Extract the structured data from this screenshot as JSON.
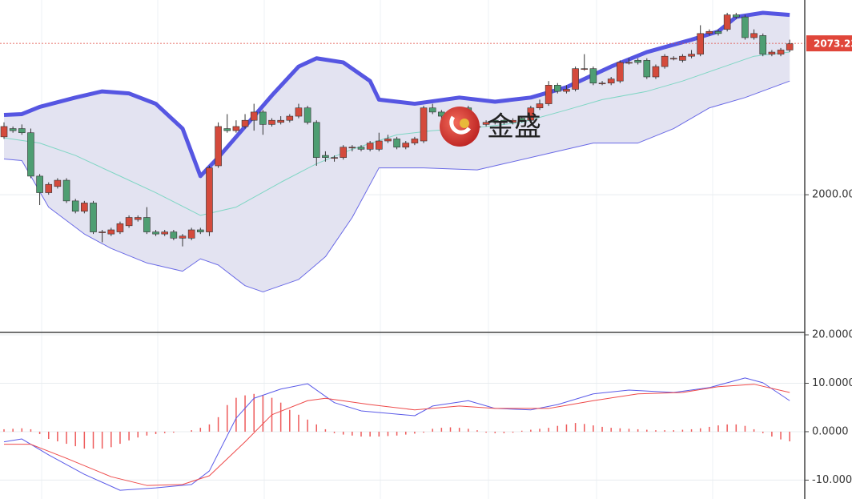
{
  "chart_data": [
    {
      "type": "candlestick",
      "up_color": "#d44a3c",
      "down_color": "#4e9e72",
      "open": [
        2028,
        2032,
        2032,
        2030,
        2009,
        2001,
        2004,
        2007,
        1997,
        1992,
        1996,
        1982,
        1981,
        1982,
        1985,
        1988,
        1989,
        1982,
        1981,
        1982,
        1979,
        1979,
        1983,
        1982,
        2014,
        2032,
        2031,
        2033,
        2036,
        2040,
        2034,
        2035,
        2036,
        2038,
        2042,
        2035,
        2019,
        2018,
        2018,
        2023,
        2023,
        2022,
        2022,
        2026,
        2027,
        2023,
        2025,
        2026,
        2042,
        2040,
        2038,
        2036,
        2042,
        2033,
        2034,
        2036,
        2036,
        2035,
        2037,
        2036,
        2042,
        2044,
        2053,
        2050,
        2051,
        2061,
        2061,
        2054,
        2054,
        2055,
        2064,
        2065,
        2065,
        2057,
        2062,
        2066,
        2065,
        2067,
        2068,
        2078,
        2079,
        2080,
        2087,
        2086,
        2076,
        2077,
        2068,
        2068,
        2070
      ],
      "high": [
        2035,
        2033,
        2034,
        2032,
        2010,
        2006,
        2008,
        2008,
        1998,
        1997,
        1997,
        1983,
        1984,
        1987,
        1990,
        1990,
        1994,
        1983,
        1983,
        1983,
        1981,
        1984,
        1984,
        2014,
        2035,
        2039,
        2036,
        2039,
        2044,
        2041,
        2037,
        2038,
        2039,
        2044,
        2043,
        2036,
        2021,
        2019,
        2024,
        2024,
        2024,
        2026,
        2030,
        2029,
        2028,
        2026,
        2028,
        2043,
        2044,
        2041,
        2039,
        2039,
        2043,
        2034,
        2036,
        2037,
        2037,
        2037,
        2038,
        2043,
        2046,
        2055,
        2054,
        2053,
        2062,
        2068,
        2062,
        2055,
        2057,
        2065,
        2066,
        2066,
        2066,
        2063,
        2068,
        2067,
        2068,
        2070,
        2082,
        2080,
        2080,
        2088,
        2088,
        2087,
        2080,
        2078,
        2070,
        2071,
        2075
      ],
      "low": [
        2027,
        2030,
        2029,
        2008,
        1995,
        2000,
        2003,
        1996,
        1991,
        1991,
        1981,
        1977,
        1980,
        1981,
        1984,
        1987,
        1981,
        1980,
        1980,
        1978,
        1975,
        1978,
        1981,
        1980,
        2013,
        2030,
        2030,
        2032,
        2031,
        2029,
        2033,
        2034,
        2035,
        2037,
        2034,
        2014,
        2016,
        2016,
        2017,
        2021,
        2021,
        2021,
        2021,
        2025,
        2022,
        2022,
        2024,
        2025,
        2039,
        2036,
        2035,
        2035,
        2031,
        2032,
        2033,
        2034,
        2034,
        2034,
        2035,
        2035,
        2041,
        2043,
        2049,
        2049,
        2050,
        2060,
        2053,
        2053,
        2053,
        2054,
        2063,
        2063,
        2056,
        2056,
        2061,
        2065,
        2064,
        2066,
        2067,
        2077,
        2077,
        2079,
        2085,
        2075,
        2075,
        2067,
        2067,
        2067,
        2069
      ],
      "close": [
        2033,
        2031,
        2030,
        2009,
        2001,
        2005,
        2007,
        1997,
        1992,
        1996,
        1982,
        1982,
        1983,
        1986,
        1989,
        1989,
        1982,
        1981,
        1982,
        1979,
        1980,
        1983,
        1982,
        2013,
        2033,
        2031,
        2033,
        2036,
        2040,
        2034,
        2036,
        2036,
        2038,
        2042,
        2035,
        2018,
        2018,
        2018,
        2023,
        2023,
        2022,
        2025,
        2026,
        2027,
        2023,
        2025,
        2027,
        2042,
        2040,
        2038,
        2036,
        2038,
        2032,
        2033,
        2035,
        2035,
        2035,
        2036,
        2036,
        2042,
        2044,
        2053,
        2050,
        2051,
        2061,
        2061,
        2054,
        2054,
        2056,
        2064,
        2064,
        2064,
        2057,
        2062,
        2067,
        2066,
        2067,
        2068,
        2078,
        2079,
        2078,
        2087,
        2086,
        2076,
        2078,
        2068,
        2069,
        2070,
        2073
      ],
      "bands": {
        "fill": "#e3e3f1",
        "upper": {
          "color": "#5656e2",
          "x": [
            0,
            2,
            4,
            8,
            11,
            14,
            17,
            20,
            22,
            24,
            27,
            30,
            33,
            35,
            38,
            41,
            42,
            46,
            51,
            55,
            59,
            63,
            68,
            72,
            77,
            80,
            82,
            85,
            88
          ],
          "values": [
            2038.6,
            2039,
            2042.5,
            2047,
            2050,
            2049,
            2044,
            2032,
            2009,
            2018,
            2033,
            2048,
            2062,
            2066,
            2064,
            2055,
            2046,
            2044,
            2047,
            2045,
            2047,
            2052,
            2062,
            2069,
            2075,
            2079,
            2086,
            2088,
            2087
          ]
        },
        "middle": {
          "color": "#7fd6c4",
          "x": [
            0,
            4,
            8,
            13,
            17,
            22,
            26,
            31,
            35,
            39,
            44,
            48,
            54,
            58,
            63,
            67,
            72,
            76,
            80,
            84,
            88
          ],
          "values": [
            2027.5,
            2025,
            2019,
            2009,
            2001,
            1990,
            1994,
            2006,
            2015,
            2022,
            2029,
            2031,
            2033,
            2035,
            2041,
            2046,
            2050,
            2055,
            2061,
            2067,
            2069
          ]
        },
        "lower": {
          "color": "#6a6ae6",
          "x": [
            0,
            2,
            5,
            9,
            12,
            16,
            20,
            22,
            24,
            27,
            29,
            33,
            36,
            39,
            42,
            47,
            53,
            56,
            61,
            66,
            71,
            75,
            79,
            83,
            88
          ],
          "values": [
            2017.3,
            2016.5,
            1994,
            1981,
            1974,
            1967,
            1963,
            1969,
            1966,
            1956,
            1953,
            1959,
            1970,
            1989,
            2013,
            2013,
            2012,
            2015,
            2020,
            2025,
            2025,
            2032,
            2042,
            2047,
            2055
          ]
        }
      },
      "ylim": [
        1933.4,
        2094.2
      ],
      "yticks": [
        {
          "value": 2000,
          "label": "2000.00"
        }
      ],
      "last_price": {
        "value": 2073.23,
        "label": "2073.23",
        "color": "#e0463a"
      }
    },
    {
      "type": "macd",
      "histogram_color": "#ee5a5a",
      "histogram": [
        0.5,
        0.6,
        0.7,
        0.5,
        -0.5,
        -1.5,
        -2,
        -2.5,
        -3,
        -3.5,
        -3.5,
        -3.5,
        -3.2,
        -2.5,
        -1.8,
        -1.2,
        -0.8,
        -0.5,
        -0.3,
        -0.2,
        0,
        0.3,
        0.8,
        1.5,
        3,
        5.5,
        7,
        7.5,
        7.8,
        7.6,
        7,
        6,
        4.5,
        3.5,
        2.5,
        1.5,
        0.5,
        -0.3,
        -0.6,
        -0.8,
        -1,
        -1,
        -1,
        -0.9,
        -0.8,
        -0.6,
        -0.4,
        -0.2,
        0.6,
        0.8,
        0.9,
        0.8,
        0.6,
        0.3,
        -0.2,
        -0.3,
        -0.3,
        -0.2,
        0.2,
        0.4,
        0.6,
        0.8,
        1.2,
        1.5,
        1.8,
        1.6,
        1.3,
        1,
        0.8,
        0.7,
        0.6,
        0.5,
        0.4,
        0.3,
        0.3,
        0.3,
        0.4,
        0.5,
        0.7,
        1,
        1.3,
        1.5,
        1.5,
        1.2,
        0.5,
        -0.3,
        -1,
        -1.6,
        -2
      ],
      "series": [
        {
          "color": "#5a5ae8",
          "x": [
            0,
            2,
            5,
            9,
            13,
            17,
            21,
            23,
            26,
            28,
            31,
            34,
            37,
            40,
            46,
            48,
            52,
            55,
            59,
            62,
            66,
            70,
            75,
            79,
            83,
            85,
            88
          ],
          "values": [
            -2.1,
            -1.5,
            -4.8,
            -8.8,
            -12.1,
            -11.6,
            -10.9,
            -8.1,
            2.8,
            6.9,
            8.8,
            9.9,
            6.0,
            4.3,
            3.3,
            5.3,
            6.4,
            4.8,
            4.5,
            5.6,
            7.8,
            8.6,
            8.1,
            9.1,
            11.1,
            10.1,
            6.4
          ]
        },
        {
          "color": "#ee4a4a",
          "x": [
            0,
            3,
            7,
            12,
            16,
            20,
            23,
            27,
            30,
            34,
            36,
            41,
            46,
            51,
            55,
            61,
            66,
            71,
            76,
            80,
            84,
            88
          ],
          "values": [
            -2.6,
            -2.6,
            -5.5,
            -9.3,
            -11.1,
            -10.9,
            -9.1,
            -2.1,
            3.5,
            6.4,
            6.9,
            5.6,
            4.5,
            5.3,
            4.8,
            4.8,
            6.4,
            7.8,
            8.1,
            9.3,
            9.8,
            8.1
          ]
        }
      ],
      "ylim": [
        -13.9,
        20.5
      ],
      "yticks": [
        {
          "value": 20,
          "label": "20.0000"
        },
        {
          "value": 10,
          "label": "10.0000"
        },
        {
          "value": 0,
          "label": "0.0000"
        },
        {
          "value": -10,
          "label": "-10.000"
        }
      ]
    }
  ],
  "logo": {
    "text": "金盛"
  }
}
